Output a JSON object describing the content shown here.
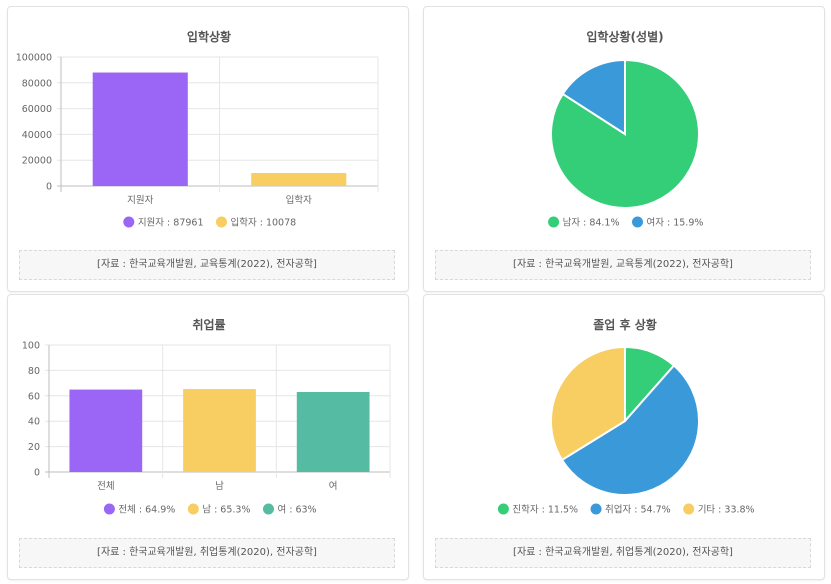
{
  "colors": {
    "purple": "#9b66f6",
    "yellow": "#f8cd61",
    "green": "#34ce78",
    "blue": "#3a9ad9",
    "teal": "#56bba3"
  },
  "chart_data": [
    {
      "type": "bar",
      "title": "입학상황",
      "categories": [
        "지원자",
        "입학자"
      ],
      "values": [
        87961,
        10078
      ],
      "colors": [
        "#9b66f6",
        "#f8cd61"
      ],
      "ylim": [
        0,
        100000
      ],
      "yticks": [
        "0",
        "20000",
        "40000",
        "60000",
        "80000",
        "100000"
      ],
      "legend": [
        "지원자 : 87961",
        "입학자 : 10078"
      ],
      "source": "[자료 : 한국교육개발원, 교육통계(2022), 전자공학]"
    },
    {
      "type": "pie",
      "title": "입학상황(성별)",
      "labels": [
        "남자",
        "여자"
      ],
      "values": [
        84.1,
        15.9
      ],
      "colors": [
        "#34ce78",
        "#3a9ad9"
      ],
      "legend": [
        "남자 : 84.1%",
        "여자 : 15.9%"
      ],
      "source": "[자료 : 한국교육개발원, 교육통계(2022), 전자공학]"
    },
    {
      "type": "bar",
      "title": "취업률",
      "categories": [
        "전체",
        "남",
        "여"
      ],
      "values": [
        64.9,
        65.3,
        63
      ],
      "colors": [
        "#9b66f6",
        "#f8cd61",
        "#56bba3"
      ],
      "ylim": [
        0,
        100
      ],
      "yticks": [
        "0",
        "20",
        "40",
        "60",
        "80",
        "100"
      ],
      "legend": [
        "전체 : 64.9%",
        "남 : 65.3%",
        "여 : 63%"
      ],
      "source": "[자료 : 한국교육개발원, 취업통계(2020), 전자공학]"
    },
    {
      "type": "pie",
      "title": "졸업 후 상황",
      "labels": [
        "진학자",
        "취업자",
        "기타"
      ],
      "values": [
        11.5,
        54.7,
        33.8
      ],
      "colors": [
        "#34ce78",
        "#3a9ad9",
        "#f8cd61"
      ],
      "legend": [
        "진학자 : 11.5%",
        "취업자 : 54.7%",
        "기타 : 33.8%"
      ],
      "source": "[자료 : 한국교육개발원, 취업통계(2020), 전자공학]"
    }
  ]
}
